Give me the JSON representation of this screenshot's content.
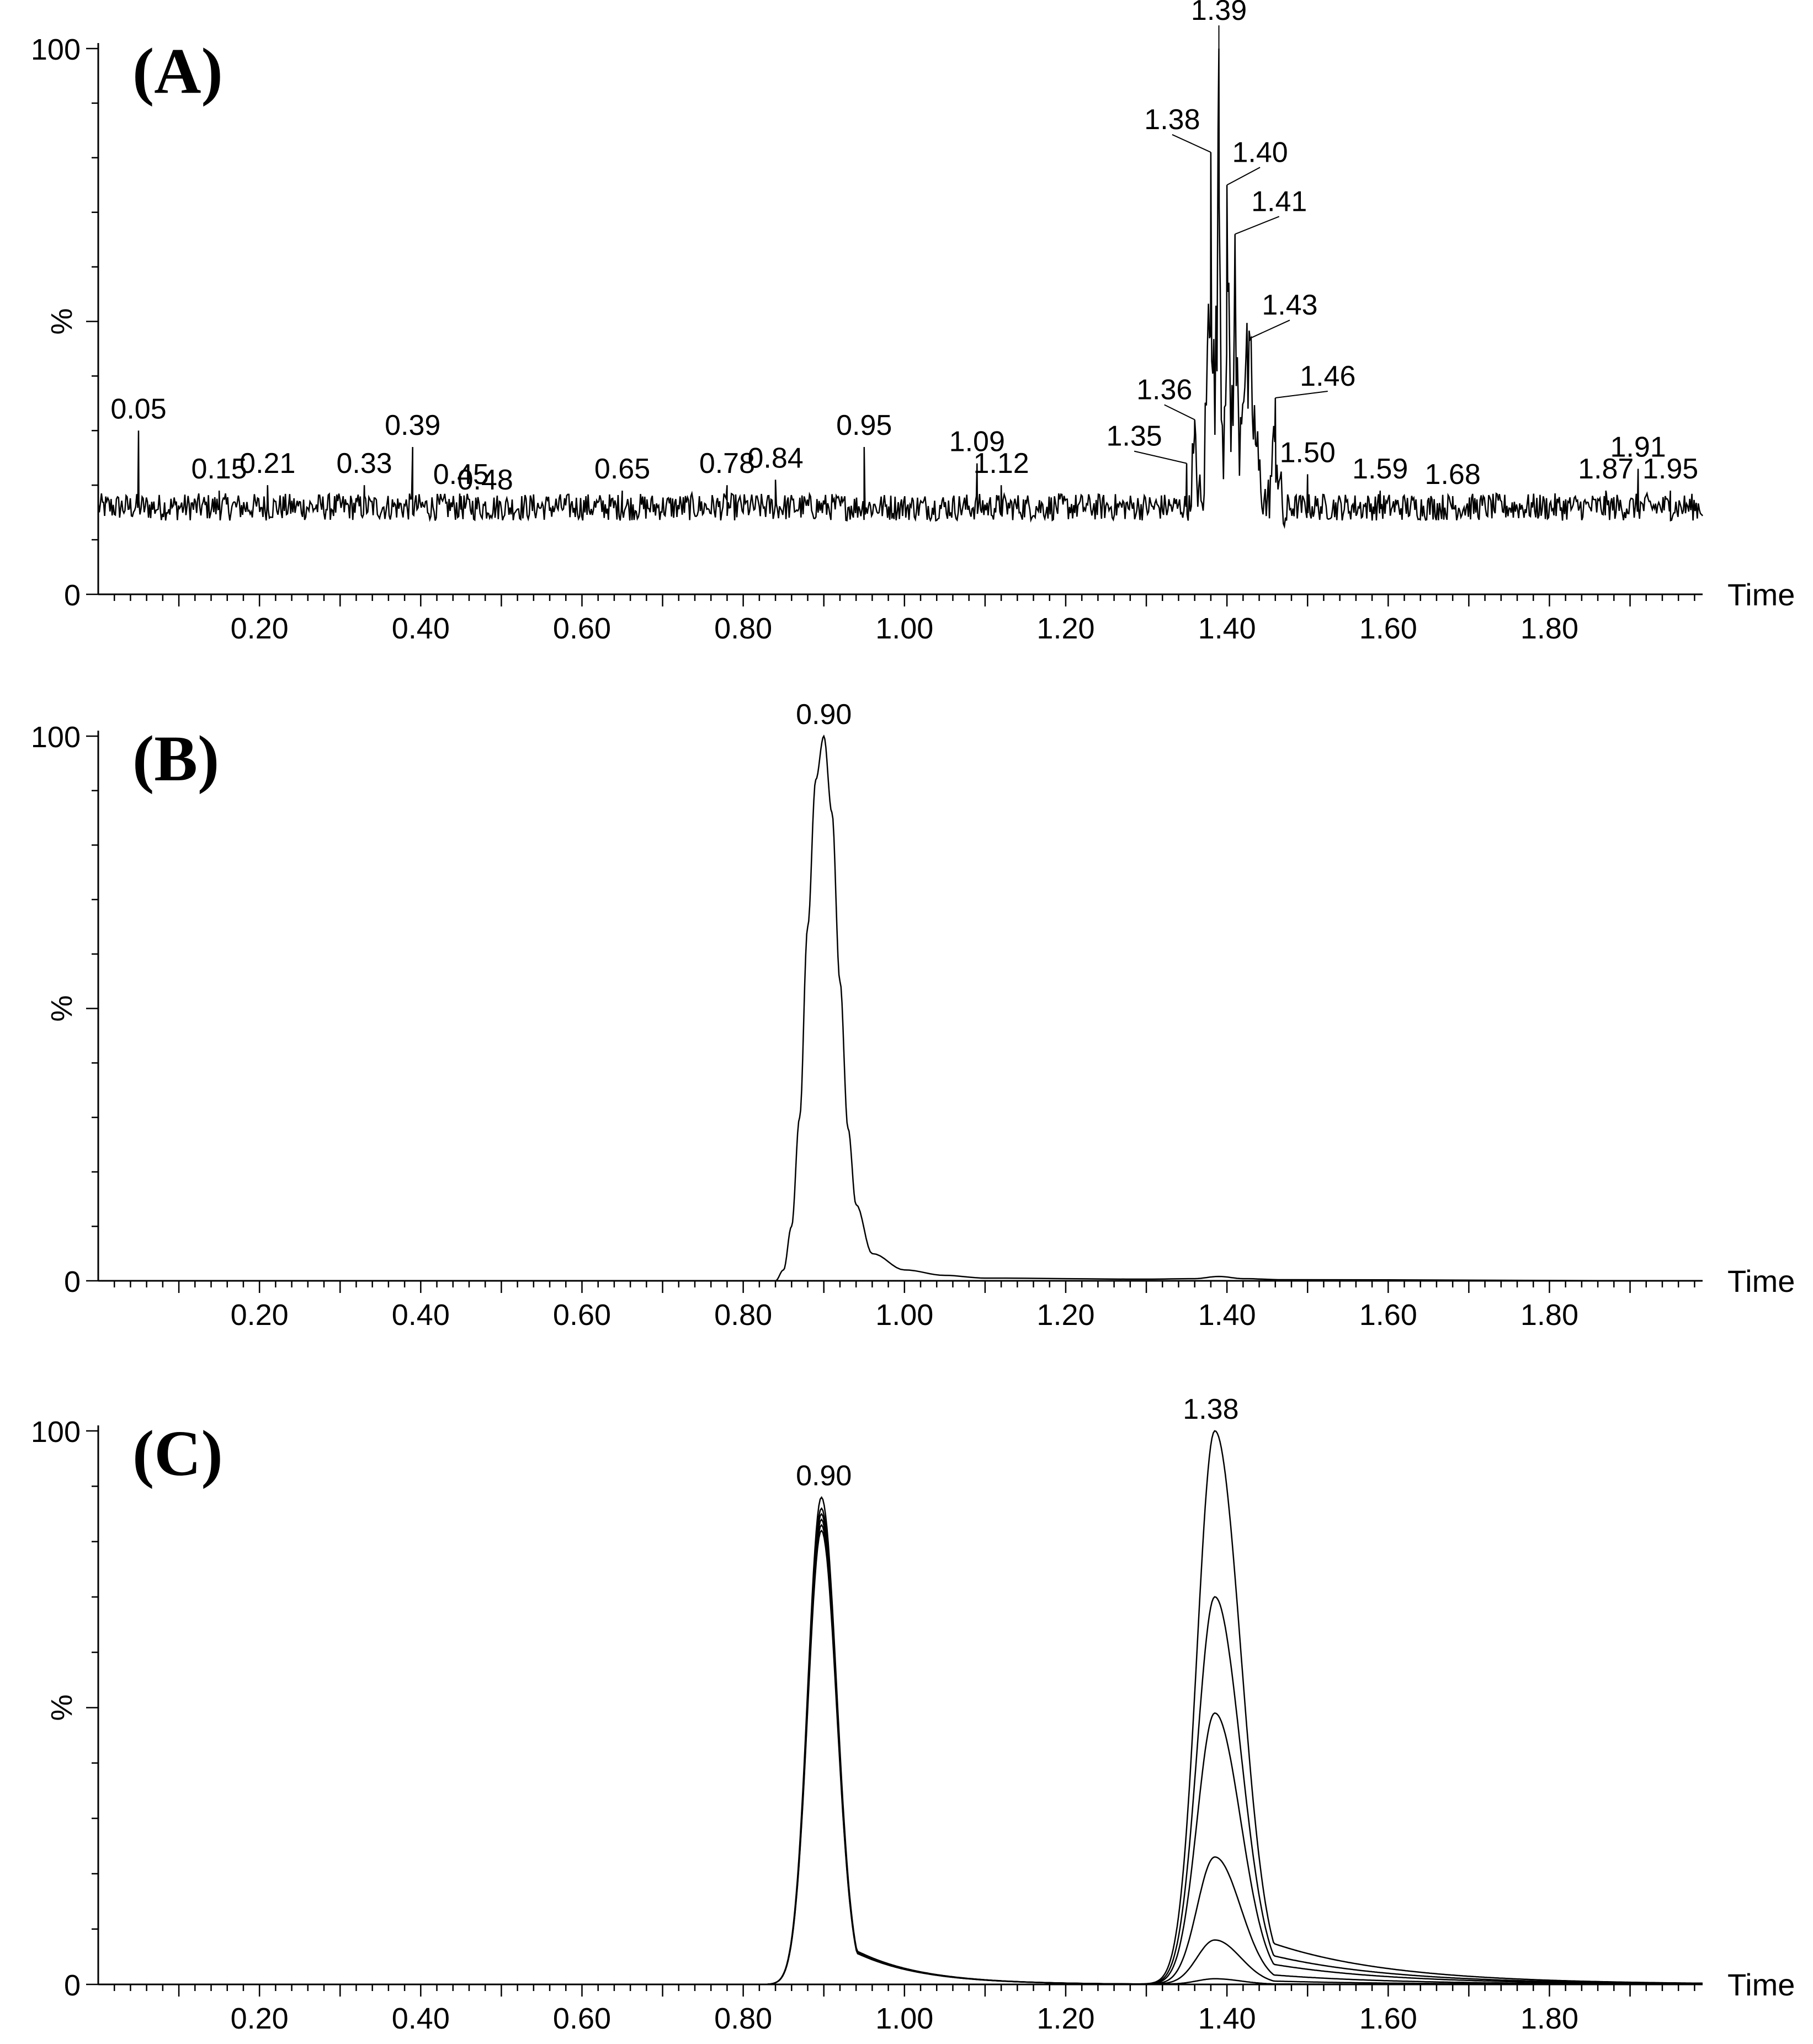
{
  "chart_data": [
    {
      "type": "line",
      "panel_label": "(A)",
      "xlabel": "Time",
      "ylabel": "%",
      "xlim": [
        0.0,
        1.99
      ],
      "ylim": [
        0,
        100
      ],
      "x_ticks": [
        "0.20",
        "0.40",
        "0.60",
        "0.80",
        "1.00",
        "1.20",
        "1.40",
        "1.60",
        "1.80"
      ],
      "y_ticks": [
        "0",
        "100"
      ],
      "noise_baseline": 16,
      "series": [
        {
          "x": [
            0.0,
            0.05,
            0.15,
            0.21,
            0.33,
            0.39,
            0.45,
            0.48,
            0.65,
            0.78,
            0.84,
            0.95,
            1.09,
            1.12,
            1.3,
            1.35,
            1.36,
            1.37,
            1.38,
            1.385,
            1.39,
            1.395,
            1.4,
            1.405,
            1.41,
            1.415,
            1.42,
            1.43,
            1.44,
            1.45,
            1.46,
            1.47,
            1.5,
            1.59,
            1.68,
            1.87,
            1.91,
            1.95,
            1.99
          ],
          "y": [
            16,
            30,
            19,
            20,
            20,
            27,
            18,
            17,
            19,
            20,
            21,
            27,
            24,
            20,
            14,
            24,
            32,
            18,
            81,
            40,
            100,
            30,
            75,
            38,
            66,
            35,
            55,
            47,
            28,
            20,
            36,
            18,
            22,
            19,
            18,
            19,
            23,
            19,
            16
          ]
        }
      ],
      "peak_labels": [
        {
          "x": 0.05,
          "y": 30,
          "text": "0.05"
        },
        {
          "x": 0.15,
          "y": 19,
          "text": "0.15"
        },
        {
          "x": 0.21,
          "y": 20,
          "text": "0.21"
        },
        {
          "x": 0.33,
          "y": 20,
          "text": "0.33"
        },
        {
          "x": 0.39,
          "y": 27,
          "text": "0.39"
        },
        {
          "x": 0.45,
          "y": 18,
          "text": "0.45"
        },
        {
          "x": 0.48,
          "y": 17,
          "text": "0.48"
        },
        {
          "x": 0.65,
          "y": 19,
          "text": "0.65"
        },
        {
          "x": 0.78,
          "y": 20,
          "text": "0.78"
        },
        {
          "x": 0.84,
          "y": 21,
          "text": "0.84"
        },
        {
          "x": 0.95,
          "y": 27,
          "text": "0.95"
        },
        {
          "x": 1.09,
          "y": 24,
          "text": "1.09"
        },
        {
          "x": 1.12,
          "y": 20,
          "text": "1.12"
        },
        {
          "x": 1.35,
          "y": 24,
          "text": "1.35"
        },
        {
          "x": 1.36,
          "y": 32,
          "text": "1.36"
        },
        {
          "x": 1.38,
          "y": 81,
          "text": "1.38"
        },
        {
          "x": 1.39,
          "y": 100,
          "text": "1.39"
        },
        {
          "x": 1.4,
          "y": 75,
          "text": "1.40"
        },
        {
          "x": 1.41,
          "y": 66,
          "text": "1.41"
        },
        {
          "x": 1.43,
          "y": 47,
          "text": "1.43"
        },
        {
          "x": 1.46,
          "y": 36,
          "text": "1.46"
        },
        {
          "x": 1.5,
          "y": 22,
          "text": "1.50"
        },
        {
          "x": 1.59,
          "y": 19,
          "text": "1.59"
        },
        {
          "x": 1.68,
          "y": 18,
          "text": "1.68"
        },
        {
          "x": 1.87,
          "y": 19,
          "text": "1.87"
        },
        {
          "x": 1.91,
          "y": 23,
          "text": "1.91"
        },
        {
          "x": 1.95,
          "y": 19,
          "text": "1.95"
        }
      ]
    },
    {
      "type": "line",
      "panel_label": "(B)",
      "xlabel": "Time",
      "ylabel": "%",
      "xlim": [
        0.0,
        1.99
      ],
      "ylim": [
        0,
        100
      ],
      "x_ticks": [
        "0.20",
        "0.40",
        "0.60",
        "0.80",
        "1.00",
        "1.20",
        "1.40",
        "1.60",
        "1.80"
      ],
      "y_ticks": [
        "0",
        "100"
      ],
      "series": [
        {
          "x": [
            0.0,
            0.84,
            0.85,
            0.86,
            0.87,
            0.88,
            0.89,
            0.9,
            0.91,
            0.92,
            0.93,
            0.94,
            0.96,
            1.0,
            1.05,
            1.1,
            1.3,
            1.36,
            1.39,
            1.42,
            1.47,
            1.99
          ],
          "y": [
            0,
            0,
            2,
            10,
            30,
            65,
            92,
            100,
            86,
            55,
            28,
            14,
            5,
            2,
            1,
            0.5,
            0.3,
            0.4,
            0.8,
            0.4,
            0.2,
            0
          ]
        }
      ],
      "peak_labels": [
        {
          "x": 0.9,
          "y": 100,
          "text": "0.90"
        }
      ]
    },
    {
      "type": "line",
      "panel_label": "(C)",
      "xlabel": "Time",
      "ylabel": "%",
      "xlim": [
        0.0,
        1.99
      ],
      "ylim": [
        0,
        100
      ],
      "x_ticks": [
        "0.20",
        "0.40",
        "0.60",
        "0.80",
        "1.00",
        "1.20",
        "1.40",
        "1.60",
        "1.80"
      ],
      "y_ticks": [
        "0",
        "100"
      ],
      "is_overlay": true,
      "series": [
        {
          "name": "",
          "peak1": 88,
          "peak2": 100
        },
        {
          "name": "",
          "peak1": 86,
          "peak2": 70
        },
        {
          "name": "",
          "peak1": 84,
          "peak2": 49
        },
        {
          "name": "",
          "peak1": 85,
          "peak2": 23
        },
        {
          "name": "",
          "peak1": 83,
          "peak2": 8
        },
        {
          "name": "",
          "peak1": 82,
          "peak2": 1
        }
      ],
      "peak_labels": [
        {
          "x": 0.9,
          "y": 88,
          "text": "0.90"
        },
        {
          "x": 1.38,
          "y": 100,
          "text": "1.38"
        }
      ]
    }
  ]
}
